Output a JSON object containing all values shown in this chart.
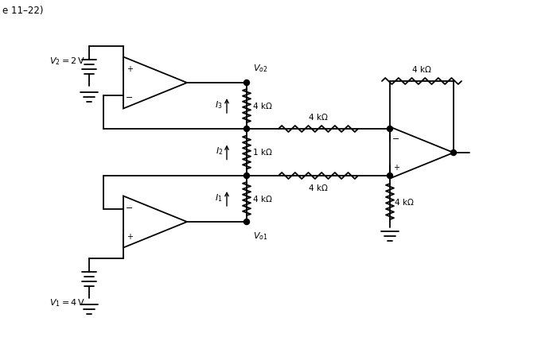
{
  "bg_color": "#ffffff",
  "line_color": "#000000",
  "lw": 1.3,
  "title": "e 11–22)",
  "v2_label": "$V_2 = 2\\,\\mathrm{V}$",
  "v1_label": "$V_1 = 4\\,\\mathrm{V}$",
  "vo2_label": "$V_{o2}$",
  "vo1_label": "$V_{o1}$",
  "i3_label": "$I_3$",
  "i2_label": "$I_2$",
  "i1_label": "$I_1$",
  "r4k": "4 kΩ",
  "r1k": "1 kΩ"
}
